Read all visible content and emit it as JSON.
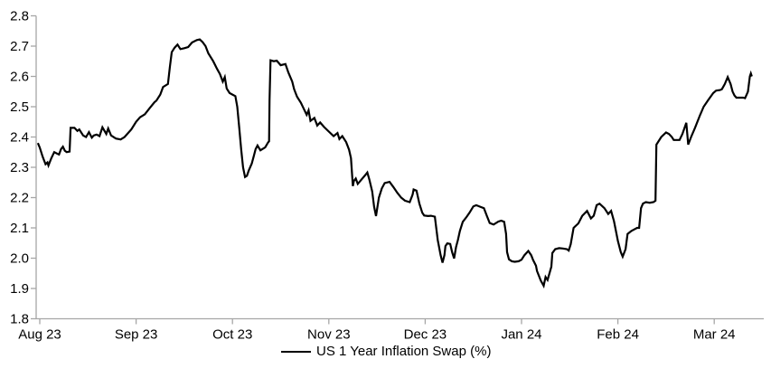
{
  "chart_data": {
    "type": "line",
    "title": "",
    "x_unit": "months (0 = Aug 23 tick, 1 = Sep 23 tick, ...)",
    "x_tick_labels": [
      "Aug 23",
      "Sep 23",
      "Oct 23",
      "Nov 23",
      "Dec 23",
      "Jan 24",
      "Feb 24",
      "Mar 24"
    ],
    "x_tick_positions": [
      0,
      1,
      2,
      3,
      4,
      5,
      6,
      7
    ],
    "y_ticks": [
      1.8,
      1.9,
      2.0,
      2.1,
      2.2,
      2.3,
      2.4,
      2.5,
      2.6,
      2.7,
      2.8
    ],
    "ylim": [
      1.8,
      2.8
    ],
    "xlim": [
      -0.04,
      7.52
    ],
    "grid": "off",
    "legend_position": "bottom-center",
    "axis_color": "#a6a6a6",
    "text_color": "#000000",
    "background": "#ffffff",
    "series": [
      {
        "name": "US 1 Year Inflation Swap (%)",
        "color": "#000000",
        "points": [
          [
            -0.02,
            2.38
          ],
          [
            0.0,
            2.365
          ],
          [
            0.03,
            2.335
          ],
          [
            0.06,
            2.31
          ],
          [
            0.08,
            2.316
          ],
          [
            0.09,
            2.306
          ],
          [
            0.12,
            2.33
          ],
          [
            0.15,
            2.35
          ],
          [
            0.18,
            2.345
          ],
          [
            0.2,
            2.342
          ],
          [
            0.22,
            2.36
          ],
          [
            0.24,
            2.368
          ],
          [
            0.26,
            2.355
          ],
          [
            0.28,
            2.35
          ],
          [
            0.31,
            2.352
          ],
          [
            0.32,
            2.43
          ],
          [
            0.36,
            2.43
          ],
          [
            0.39,
            2.42
          ],
          [
            0.41,
            2.425
          ],
          [
            0.45,
            2.405
          ],
          [
            0.48,
            2.4
          ],
          [
            0.51,
            2.416
          ],
          [
            0.54,
            2.398
          ],
          [
            0.56,
            2.405
          ],
          [
            0.59,
            2.408
          ],
          [
            0.62,
            2.403
          ],
          [
            0.65,
            2.432
          ],
          [
            0.69,
            2.41
          ],
          [
            0.71,
            2.428
          ],
          [
            0.74,
            2.405
          ],
          [
            0.79,
            2.395
          ],
          [
            0.84,
            2.392
          ],
          [
            0.88,
            2.4
          ],
          [
            0.95,
            2.425
          ],
          [
            1.0,
            2.45
          ],
          [
            1.04,
            2.465
          ],
          [
            1.09,
            2.475
          ],
          [
            1.14,
            2.495
          ],
          [
            1.19,
            2.515
          ],
          [
            1.21,
            2.52
          ],
          [
            1.25,
            2.54
          ],
          [
            1.28,
            2.565
          ],
          [
            1.33,
            2.575
          ],
          [
            1.35,
            2.63
          ],
          [
            1.37,
            2.68
          ],
          [
            1.4,
            2.695
          ],
          [
            1.43,
            2.705
          ],
          [
            1.46,
            2.69
          ],
          [
            1.5,
            2.693
          ],
          [
            1.54,
            2.697
          ],
          [
            1.58,
            2.712
          ],
          [
            1.63,
            2.72
          ],
          [
            1.66,
            2.722
          ],
          [
            1.69,
            2.713
          ],
          [
            1.72,
            2.7
          ],
          [
            1.75,
            2.676
          ],
          [
            1.8,
            2.65
          ],
          [
            1.84,
            2.625
          ],
          [
            1.87,
            2.608
          ],
          [
            1.9,
            2.583
          ],
          [
            1.92,
            2.598
          ],
          [
            1.94,
            2.56
          ],
          [
            1.97,
            2.545
          ],
          [
            2.0,
            2.54
          ],
          [
            2.03,
            2.535
          ],
          [
            2.05,
            2.5
          ],
          [
            2.07,
            2.43
          ],
          [
            2.09,
            2.36
          ],
          [
            2.11,
            2.3
          ],
          [
            2.13,
            2.268
          ],
          [
            2.15,
            2.272
          ],
          [
            2.17,
            2.29
          ],
          [
            2.2,
            2.312
          ],
          [
            2.22,
            2.336
          ],
          [
            2.24,
            2.36
          ],
          [
            2.26,
            2.372
          ],
          [
            2.29,
            2.356
          ],
          [
            2.31,
            2.36
          ],
          [
            2.34,
            2.366
          ],
          [
            2.37,
            2.382
          ],
          [
            2.38,
            2.386
          ],
          [
            2.385,
            2.52
          ],
          [
            2.395,
            2.653
          ],
          [
            2.43,
            2.65
          ],
          [
            2.46,
            2.652
          ],
          [
            2.5,
            2.637
          ],
          [
            2.55,
            2.641
          ],
          [
            2.58,
            2.613
          ],
          [
            2.62,
            2.583
          ],
          [
            2.64,
            2.558
          ],
          [
            2.67,
            2.533
          ],
          [
            2.71,
            2.513
          ],
          [
            2.74,
            2.493
          ],
          [
            2.77,
            2.473
          ],
          [
            2.79,
            2.488
          ],
          [
            2.81,
            2.453
          ],
          [
            2.85,
            2.463
          ],
          [
            2.88,
            2.438
          ],
          [
            2.91,
            2.448
          ],
          [
            2.95,
            2.433
          ],
          [
            3.0,
            2.418
          ],
          [
            3.05,
            2.403
          ],
          [
            3.09,
            2.413
          ],
          [
            3.11,
            2.393
          ],
          [
            3.14,
            2.403
          ],
          [
            3.18,
            2.383
          ],
          [
            3.21,
            2.358
          ],
          [
            3.23,
            2.33
          ],
          [
            3.25,
            2.238
          ],
          [
            3.26,
            2.255
          ],
          [
            3.28,
            2.263
          ],
          [
            3.3,
            2.245
          ],
          [
            3.34,
            2.26
          ],
          [
            3.38,
            2.275
          ],
          [
            3.4,
            2.283
          ],
          [
            3.42,
            2.26
          ],
          [
            3.45,
            2.22
          ],
          [
            3.47,
            2.17
          ],
          [
            3.49,
            2.139
          ],
          [
            3.52,
            2.2
          ],
          [
            3.55,
            2.23
          ],
          [
            3.58,
            2.248
          ],
          [
            3.63,
            2.252
          ],
          [
            3.67,
            2.235
          ],
          [
            3.71,
            2.216
          ],
          [
            3.75,
            2.2
          ],
          [
            3.79,
            2.19
          ],
          [
            3.84,
            2.185
          ],
          [
            3.87,
            2.21
          ],
          [
            3.88,
            2.227
          ],
          [
            3.91,
            2.223
          ],
          [
            3.94,
            2.18
          ],
          [
            3.97,
            2.15
          ],
          [
            3.99,
            2.141
          ],
          [
            4.03,
            2.139
          ],
          [
            4.06,
            2.14
          ],
          [
            4.1,
            2.137
          ],
          [
            4.13,
            2.06
          ],
          [
            4.16,
            2.01
          ],
          [
            4.18,
            1.985
          ],
          [
            4.2,
            2.01
          ],
          [
            4.21,
            2.04
          ],
          [
            4.23,
            2.049
          ],
          [
            4.26,
            2.047
          ],
          [
            4.28,
            2.02
          ],
          [
            4.3,
            1.999
          ],
          [
            4.32,
            2.036
          ],
          [
            4.34,
            2.06
          ],
          [
            4.36,
            2.09
          ],
          [
            4.39,
            2.12
          ],
          [
            4.43,
            2.136
          ],
          [
            4.46,
            2.15
          ],
          [
            4.5,
            2.171
          ],
          [
            4.53,
            2.175
          ],
          [
            4.57,
            2.17
          ],
          [
            4.61,
            2.165
          ],
          [
            4.64,
            2.14
          ],
          [
            4.67,
            2.116
          ],
          [
            4.71,
            2.111
          ],
          [
            4.76,
            2.121
          ],
          [
            4.79,
            2.124
          ],
          [
            4.82,
            2.12
          ],
          [
            4.84,
            2.08
          ],
          [
            4.85,
            2.02
          ],
          [
            4.87,
            1.996
          ],
          [
            4.9,
            1.99
          ],
          [
            4.93,
            1.988
          ],
          [
            4.97,
            1.99
          ],
          [
            5.0,
            1.995
          ],
          [
            5.03,
            2.01
          ],
          [
            5.07,
            2.024
          ],
          [
            5.1,
            2.01
          ],
          [
            5.12,
            1.994
          ],
          [
            5.15,
            1.975
          ],
          [
            5.16,
            1.958
          ],
          [
            5.2,
            1.926
          ],
          [
            5.23,
            1.909
          ],
          [
            5.25,
            1.938
          ],
          [
            5.27,
            1.928
          ],
          [
            5.29,
            1.95
          ],
          [
            5.31,
            1.972
          ],
          [
            5.32,
            2.017
          ],
          [
            5.35,
            2.03
          ],
          [
            5.39,
            2.033
          ],
          [
            5.43,
            2.032
          ],
          [
            5.47,
            2.03
          ],
          [
            5.49,
            2.025
          ],
          [
            5.51,
            2.046
          ],
          [
            5.54,
            2.1
          ],
          [
            5.59,
            2.115
          ],
          [
            5.63,
            2.14
          ],
          [
            5.68,
            2.156
          ],
          [
            5.72,
            2.131
          ],
          [
            5.75,
            2.14
          ],
          [
            5.78,
            2.175
          ],
          [
            5.81,
            2.18
          ],
          [
            5.86,
            2.165
          ],
          [
            5.9,
            2.146
          ],
          [
            5.93,
            2.156
          ],
          [
            5.96,
            2.122
          ],
          [
            6.0,
            2.057
          ],
          [
            6.03,
            2.02
          ],
          [
            6.05,
            2.005
          ],
          [
            6.08,
            2.03
          ],
          [
            6.1,
            2.08
          ],
          [
            6.14,
            2.09
          ],
          [
            6.17,
            2.095
          ],
          [
            6.2,
            2.1
          ],
          [
            6.22,
            2.1
          ],
          [
            6.24,
            2.165
          ],
          [
            6.26,
            2.18
          ],
          [
            6.29,
            2.185
          ],
          [
            6.33,
            2.183
          ],
          [
            6.37,
            2.185
          ],
          [
            6.39,
            2.19
          ],
          [
            6.4,
            2.375
          ],
          [
            6.42,
            2.385
          ],
          [
            6.45,
            2.4
          ],
          [
            6.5,
            2.415
          ],
          [
            6.53,
            2.41
          ],
          [
            6.56,
            2.4
          ],
          [
            6.58,
            2.39
          ],
          [
            6.62,
            2.39
          ],
          [
            6.64,
            2.39
          ],
          [
            6.67,
            2.41
          ],
          [
            6.71,
            2.447
          ],
          [
            6.73,
            2.375
          ],
          [
            6.76,
            2.4
          ],
          [
            6.8,
            2.43
          ],
          [
            6.85,
            2.47
          ],
          [
            6.89,
            2.5
          ],
          [
            6.94,
            2.523
          ],
          [
            6.99,
            2.545
          ],
          [
            7.02,
            2.553
          ],
          [
            7.06,
            2.555
          ],
          [
            7.08,
            2.558
          ],
          [
            7.11,
            2.575
          ],
          [
            7.14,
            2.598
          ],
          [
            7.17,
            2.575
          ],
          [
            7.19,
            2.55
          ],
          [
            7.21,
            2.537
          ],
          [
            7.23,
            2.53
          ],
          [
            7.26,
            2.53
          ],
          [
            7.3,
            2.53
          ],
          [
            7.32,
            2.528
          ],
          [
            7.35,
            2.55
          ],
          [
            7.37,
            2.6
          ],
          [
            7.38,
            2.61
          ],
          [
            7.39,
            2.6
          ]
        ]
      }
    ]
  },
  "legend": {
    "label": "US 1 Year Inflation Swap (%)"
  }
}
